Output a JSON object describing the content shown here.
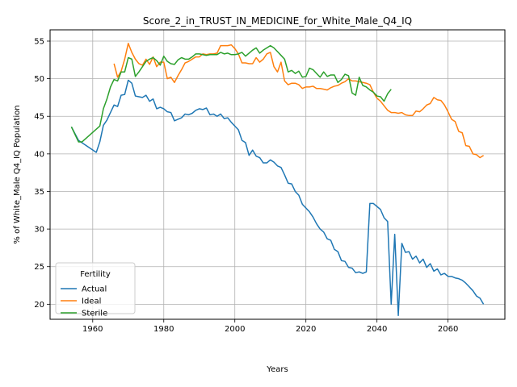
{
  "chart_data": {
    "type": "line",
    "title": "Score_2_in_TRUST_IN_MEDICINE_for_White_Male_Q4_IQ",
    "xlabel": "Years",
    "ylabel": "% of White_Male Q4_IQ Population",
    "xlim": [
      1948,
      2076
    ],
    "ylim": [
      18.0,
      56.5
    ],
    "xticks": [
      1960,
      1980,
      2000,
      2020,
      2040,
      2060
    ],
    "yticks": [
      20,
      25,
      30,
      35,
      40,
      45,
      50,
      55
    ],
    "grid": true,
    "legend": {
      "title": "Fertility",
      "placement": "lower-left"
    },
    "series": [
      {
        "name": "Actual",
        "color": "#1f77b4",
        "points": [
          [
            1954,
            43.6
          ],
          [
            1956,
            41.8
          ],
          [
            1961,
            40.2
          ],
          [
            1962,
            41.6
          ],
          [
            1963,
            43.8
          ],
          [
            1964,
            44.5
          ],
          [
            1965,
            45.5
          ],
          [
            1966,
            46.5
          ],
          [
            1967,
            46.3
          ],
          [
            1968,
            47.8
          ],
          [
            1969,
            47.9
          ],
          [
            1970,
            49.8
          ],
          [
            1971,
            49.4
          ],
          [
            1972,
            47.7
          ],
          [
            1973,
            47.6
          ],
          [
            1974,
            47.5
          ],
          [
            1975,
            47.8
          ],
          [
            1976,
            47.0
          ],
          [
            1977,
            47.3
          ],
          [
            1978,
            46.0
          ],
          [
            1979,
            46.2
          ],
          [
            1980,
            46.0
          ],
          [
            1981,
            45.6
          ],
          [
            1982,
            45.5
          ],
          [
            1983,
            44.4
          ],
          [
            1984,
            44.6
          ],
          [
            1985,
            44.8
          ],
          [
            1986,
            45.3
          ],
          [
            1987,
            45.2
          ],
          [
            1988,
            45.4
          ],
          [
            1989,
            45.8
          ],
          [
            1990,
            46.0
          ],
          [
            1991,
            45.9
          ],
          [
            1992,
            46.1
          ],
          [
            1993,
            45.2
          ],
          [
            1994,
            45.3
          ],
          [
            1995,
            45.0
          ],
          [
            1996,
            45.3
          ],
          [
            1997,
            44.7
          ],
          [
            1998,
            44.8
          ],
          [
            1999,
            44.2
          ],
          [
            2000,
            43.7
          ],
          [
            2001,
            43.2
          ],
          [
            2002,
            41.8
          ],
          [
            2003,
            41.5
          ],
          [
            2004,
            39.8
          ],
          [
            2005,
            40.5
          ],
          [
            2006,
            39.7
          ],
          [
            2007,
            39.5
          ],
          [
            2008,
            38.8
          ],
          [
            2009,
            38.8
          ],
          [
            2010,
            39.2
          ],
          [
            2011,
            38.9
          ],
          [
            2012,
            38.4
          ],
          [
            2013,
            38.2
          ],
          [
            2014,
            37.2
          ],
          [
            2015,
            36.1
          ],
          [
            2016,
            36.0
          ],
          [
            2017,
            35.0
          ],
          [
            2018,
            34.5
          ],
          [
            2019,
            33.3
          ],
          [
            2020,
            32.8
          ],
          [
            2021,
            32.3
          ],
          [
            2022,
            31.6
          ],
          [
            2023,
            30.7
          ],
          [
            2024,
            30.0
          ],
          [
            2025,
            29.6
          ],
          [
            2026,
            28.7
          ],
          [
            2027,
            28.5
          ],
          [
            2028,
            27.3
          ],
          [
            2029,
            27.0
          ],
          [
            2030,
            25.8
          ],
          [
            2031,
            25.7
          ],
          [
            2032,
            24.9
          ],
          [
            2033,
            24.8
          ],
          [
            2034,
            24.2
          ],
          [
            2035,
            24.3
          ],
          [
            2036,
            24.1
          ],
          [
            2037,
            24.3
          ],
          [
            2038,
            33.4
          ],
          [
            2039,
            33.4
          ],
          [
            2040,
            33.0
          ],
          [
            2041,
            32.6
          ],
          [
            2042,
            31.5
          ],
          [
            2043,
            31.0
          ],
          [
            2044,
            20.0
          ],
          [
            2045,
            29.3
          ],
          [
            2046,
            18.5
          ],
          [
            2047,
            28.1
          ],
          [
            2048,
            26.9
          ],
          [
            2049,
            27.0
          ],
          [
            2050,
            26.0
          ],
          [
            2051,
            26.4
          ],
          [
            2052,
            25.5
          ],
          [
            2053,
            26.0
          ],
          [
            2054,
            24.9
          ],
          [
            2055,
            25.4
          ],
          [
            2056,
            24.4
          ],
          [
            2057,
            24.7
          ],
          [
            2058,
            23.9
          ],
          [
            2059,
            24.1
          ],
          [
            2060,
            23.7
          ],
          [
            2061,
            23.7
          ],
          [
            2062,
            23.5
          ],
          [
            2063,
            23.4
          ],
          [
            2064,
            23.2
          ],
          [
            2065,
            22.8
          ],
          [
            2066,
            22.3
          ],
          [
            2067,
            21.8
          ],
          [
            2068,
            21.1
          ],
          [
            2069,
            20.8
          ],
          [
            2070,
            20.0
          ]
        ]
      },
      {
        "name": "Ideal",
        "color": "#ff7f0e",
        "points": [
          [
            1966,
            52.0
          ],
          [
            1967,
            50.2
          ],
          [
            1968,
            51.0
          ],
          [
            1969,
            52.6
          ],
          [
            1970,
            54.7
          ],
          [
            1971,
            53.5
          ],
          [
            1972,
            52.6
          ],
          [
            1973,
            52.0
          ],
          [
            1974,
            51.8
          ],
          [
            1975,
            52.6
          ],
          [
            1976,
            51.9
          ],
          [
            1977,
            52.9
          ],
          [
            1978,
            51.6
          ],
          [
            1979,
            52.2
          ],
          [
            1980,
            52.2
          ],
          [
            1981,
            50.0
          ],
          [
            1982,
            50.2
          ],
          [
            1983,
            49.5
          ],
          [
            1984,
            50.4
          ],
          [
            1985,
            51.2
          ],
          [
            1986,
            52.1
          ],
          [
            1987,
            52.3
          ],
          [
            1988,
            52.6
          ],
          [
            1989,
            52.9
          ],
          [
            1990,
            52.9
          ],
          [
            1991,
            53.3
          ],
          [
            1992,
            53.2
          ],
          [
            1993,
            53.3
          ],
          [
            1994,
            53.3
          ],
          [
            1995,
            53.4
          ],
          [
            1996,
            54.4
          ],
          [
            1997,
            54.4
          ],
          [
            1998,
            54.4
          ],
          [
            1999,
            54.5
          ],
          [
            2000,
            54.0
          ],
          [
            2001,
            53.3
          ],
          [
            2002,
            52.1
          ],
          [
            2003,
            52.1
          ],
          [
            2004,
            52.0
          ],
          [
            2005,
            52.0
          ],
          [
            2006,
            52.8
          ],
          [
            2007,
            52.2
          ],
          [
            2008,
            52.6
          ],
          [
            2009,
            53.3
          ],
          [
            2010,
            53.5
          ],
          [
            2011,
            51.6
          ],
          [
            2012,
            50.9
          ],
          [
            2013,
            52.2
          ],
          [
            2014,
            49.7
          ],
          [
            2015,
            49.2
          ],
          [
            2016,
            49.4
          ],
          [
            2017,
            49.4
          ],
          [
            2018,
            49.2
          ],
          [
            2019,
            48.7
          ],
          [
            2020,
            48.9
          ],
          [
            2021,
            48.9
          ],
          [
            2022,
            49.0
          ],
          [
            2023,
            48.7
          ],
          [
            2024,
            48.7
          ],
          [
            2025,
            48.6
          ],
          [
            2026,
            48.5
          ],
          [
            2027,
            48.8
          ],
          [
            2028,
            49.0
          ],
          [
            2029,
            49.1
          ],
          [
            2030,
            49.4
          ],
          [
            2031,
            49.6
          ],
          [
            2032,
            50.0
          ],
          [
            2033,
            49.7
          ],
          [
            2034,
            49.7
          ],
          [
            2035,
            49.6
          ],
          [
            2036,
            49.5
          ],
          [
            2037,
            49.4
          ],
          [
            2038,
            49.2
          ],
          [
            2039,
            48.2
          ],
          [
            2040,
            47.4
          ],
          [
            2041,
            47.0
          ],
          [
            2042,
            46.4
          ],
          [
            2043,
            45.8
          ],
          [
            2044,
            45.5
          ],
          [
            2045,
            45.5
          ],
          [
            2046,
            45.4
          ],
          [
            2047,
            45.5
          ],
          [
            2048,
            45.2
          ],
          [
            2049,
            45.1
          ],
          [
            2050,
            45.1
          ],
          [
            2051,
            45.7
          ],
          [
            2052,
            45.6
          ],
          [
            2053,
            46.0
          ],
          [
            2054,
            46.5
          ],
          [
            2055,
            46.7
          ],
          [
            2056,
            47.5
          ],
          [
            2057,
            47.2
          ],
          [
            2058,
            47.1
          ],
          [
            2059,
            46.5
          ],
          [
            2060,
            45.6
          ],
          [
            2061,
            44.6
          ],
          [
            2062,
            44.3
          ],
          [
            2063,
            43.0
          ],
          [
            2064,
            42.8
          ],
          [
            2065,
            41.1
          ],
          [
            2066,
            41.0
          ],
          [
            2067,
            40.0
          ],
          [
            2068,
            39.9
          ],
          [
            2069,
            39.5
          ],
          [
            2070,
            39.8
          ]
        ]
      },
      {
        "name": "Sterile",
        "color": "#2ca02c",
        "points": [
          [
            1954,
            43.6
          ],
          [
            1956,
            41.6
          ],
          [
            1957,
            41.6
          ],
          [
            1962,
            43.7
          ],
          [
            1963,
            46.0
          ],
          [
            1964,
            47.3
          ],
          [
            1965,
            48.9
          ],
          [
            1966,
            49.9
          ],
          [
            1967,
            49.7
          ],
          [
            1968,
            50.9
          ],
          [
            1969,
            50.9
          ],
          [
            1970,
            52.8
          ],
          [
            1971,
            52.6
          ],
          [
            1972,
            50.3
          ],
          [
            1973,
            50.9
          ],
          [
            1974,
            51.6
          ],
          [
            1975,
            52.3
          ],
          [
            1976,
            52.6
          ],
          [
            1977,
            52.8
          ],
          [
            1978,
            52.4
          ],
          [
            1979,
            51.8
          ],
          [
            1980,
            53.0
          ],
          [
            1981,
            52.3
          ],
          [
            1982,
            52.0
          ],
          [
            1983,
            51.9
          ],
          [
            1984,
            52.5
          ],
          [
            1985,
            52.8
          ],
          [
            1986,
            52.6
          ],
          [
            1987,
            52.6
          ],
          [
            1988,
            52.9
          ],
          [
            1989,
            53.3
          ],
          [
            1990,
            53.3
          ],
          [
            1991,
            53.2
          ],
          [
            1992,
            53.1
          ],
          [
            1993,
            53.2
          ],
          [
            1994,
            53.2
          ],
          [
            1995,
            53.2
          ],
          [
            1996,
            53.5
          ],
          [
            1997,
            53.3
          ],
          [
            1998,
            53.4
          ],
          [
            1999,
            53.2
          ],
          [
            2000,
            53.2
          ],
          [
            2001,
            53.3
          ],
          [
            2002,
            53.5
          ],
          [
            2003,
            53.0
          ],
          [
            2004,
            53.4
          ],
          [
            2005,
            53.8
          ],
          [
            2006,
            54.1
          ],
          [
            2007,
            53.4
          ],
          [
            2008,
            53.8
          ],
          [
            2009,
            54.1
          ],
          [
            2010,
            54.4
          ],
          [
            2011,
            54.1
          ],
          [
            2012,
            53.6
          ],
          [
            2013,
            53.1
          ],
          [
            2014,
            52.6
          ],
          [
            2015,
            50.9
          ],
          [
            2016,
            51.1
          ],
          [
            2017,
            50.7
          ],
          [
            2018,
            51.0
          ],
          [
            2019,
            50.2
          ],
          [
            2020,
            50.3
          ],
          [
            2021,
            51.4
          ],
          [
            2022,
            51.2
          ],
          [
            2023,
            50.7
          ],
          [
            2024,
            50.2
          ],
          [
            2025,
            50.9
          ],
          [
            2026,
            50.3
          ],
          [
            2027,
            50.5
          ],
          [
            2028,
            50.5
          ],
          [
            2029,
            49.5
          ],
          [
            2030,
            49.9
          ],
          [
            2031,
            50.6
          ],
          [
            2032,
            50.4
          ],
          [
            2033,
            48.1
          ],
          [
            2034,
            47.8
          ],
          [
            2035,
            50.2
          ],
          [
            2036,
            49.1
          ],
          [
            2037,
            48.9
          ],
          [
            2038,
            48.5
          ],
          [
            2039,
            48.2
          ],
          [
            2040,
            47.7
          ],
          [
            2041,
            47.6
          ],
          [
            2042,
            47.0
          ],
          [
            2043,
            48.0
          ],
          [
            2044,
            48.6
          ]
        ]
      }
    ]
  }
}
